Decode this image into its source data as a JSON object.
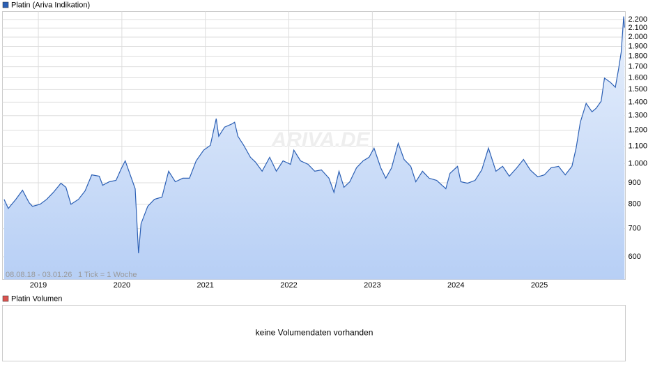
{
  "chart_data": {
    "type": "line",
    "series": [
      {
        "name": "Platin (Ariva Indikation)",
        "color": "#2b5fb4",
        "values": [
          822,
          782,
          822,
          864,
          807,
          791,
          800,
          822,
          854,
          898,
          878,
          800,
          822,
          861,
          940,
          933,
          888,
          905,
          912,
          970,
          1015,
          940,
          871,
          612,
          719,
          791,
          822,
          832,
          959,
          905,
          923,
          923,
          1015,
          1076,
          1105,
          1279,
          1161,
          1221,
          1240,
          1254,
          1161,
          1105,
          1035,
          1008,
          959,
          1035,
          959,
          1015,
          996,
          1076,
          1015,
          996,
          959,
          966,
          923,
          854,
          959,
          878,
          905,
          977,
          1015,
          1035,
          1088,
          977,
          923,
          977,
          1118,
          1023,
          985,
          905,
          959,
          923,
          912,
          871,
          948,
          985,
          905,
          898,
          912,
          966,
          1088,
          959,
          985,
          933,
          977,
          1023,
          966,
          930,
          940,
          977,
          985,
          940,
          985,
          1088,
          1254,
          1391,
          1328,
          1354,
          1407,
          1597,
          1561,
          1519,
          1685,
          1841,
          2239,
          2106
        ]
      }
    ],
    "x": [
      2018.59,
      2018.64,
      2018.73,
      2018.81,
      2018.89,
      2018.93,
      2019.02,
      2019.1,
      2019.18,
      2019.27,
      2019.33,
      2019.39,
      2019.48,
      2019.56,
      2019.64,
      2019.73,
      2019.77,
      2019.85,
      2019.93,
      2019.99,
      2020.04,
      2020.1,
      2020.16,
      2020.2,
      2020.23,
      2020.31,
      2020.39,
      2020.48,
      2020.56,
      2020.64,
      2020.73,
      2020.81,
      2020.89,
      2020.98,
      2021.06,
      2021.13,
      2021.16,
      2021.23,
      2021.31,
      2021.35,
      2021.39,
      2021.46,
      2021.54,
      2021.6,
      2021.68,
      2021.77,
      2021.85,
      2021.93,
      2022.02,
      2022.06,
      2022.14,
      2022.23,
      2022.31,
      2022.39,
      2022.48,
      2022.54,
      2022.6,
      2022.66,
      2022.73,
      2022.81,
      2022.89,
      2022.96,
      2023.02,
      2023.1,
      2023.16,
      2023.23,
      2023.31,
      2023.38,
      2023.46,
      2023.52,
      2023.6,
      2023.68,
      2023.77,
      2023.88,
      2023.93,
      2024.02,
      2024.06,
      2024.14,
      2024.23,
      2024.31,
      2024.39,
      2024.48,
      2024.56,
      2024.64,
      2024.73,
      2024.81,
      2024.89,
      2024.98,
      2025.06,
      2025.14,
      2025.23,
      2025.31,
      2025.39,
      2025.44,
      2025.49,
      2025.56,
      2025.63,
      2025.68,
      2025.74,
      2025.78,
      2025.85,
      2025.91,
      2025.95,
      2025.98,
      2026.01,
      2026.02
    ],
    "xlim": [
      2018.57,
      2026.03
    ],
    "xticks": [
      2019,
      2020,
      2021,
      2022,
      2023,
      2024,
      2025
    ],
    "ylim": [
      530,
      2300
    ],
    "log_scale": true,
    "grid": true,
    "yticks": [
      600,
      700,
      800,
      900,
      {
        "value": 1000,
        "label": "1.000"
      },
      {
        "value": 1100,
        "label": "1.100"
      },
      {
        "value": 1200,
        "label": "1.200"
      },
      {
        "value": 1300,
        "label": "1.300"
      },
      {
        "value": 1400,
        "label": "1.400"
      },
      {
        "value": 1500,
        "label": "1.500"
      },
      {
        "value": 1600,
        "label": "1.600"
      },
      {
        "value": 1700,
        "label": "1.700"
      },
      {
        "value": 1800,
        "label": "1.800"
      },
      {
        "value": 1900,
        "label": "1.900"
      },
      {
        "value": 2000,
        "label": "2.000"
      },
      {
        "value": 2100,
        "label": "2.100"
      },
      {
        "value": 2200,
        "label": "2.200"
      }
    ],
    "date_range": "08.08.18 - 03.01.26",
    "tick_note": "1 Tick = 1 Woche",
    "watermark": "ARIVA.DE"
  },
  "volume_panel": {
    "title": "Platin Volumen",
    "message": "keine Volumendaten vorhanden",
    "color": "#d9534f"
  }
}
